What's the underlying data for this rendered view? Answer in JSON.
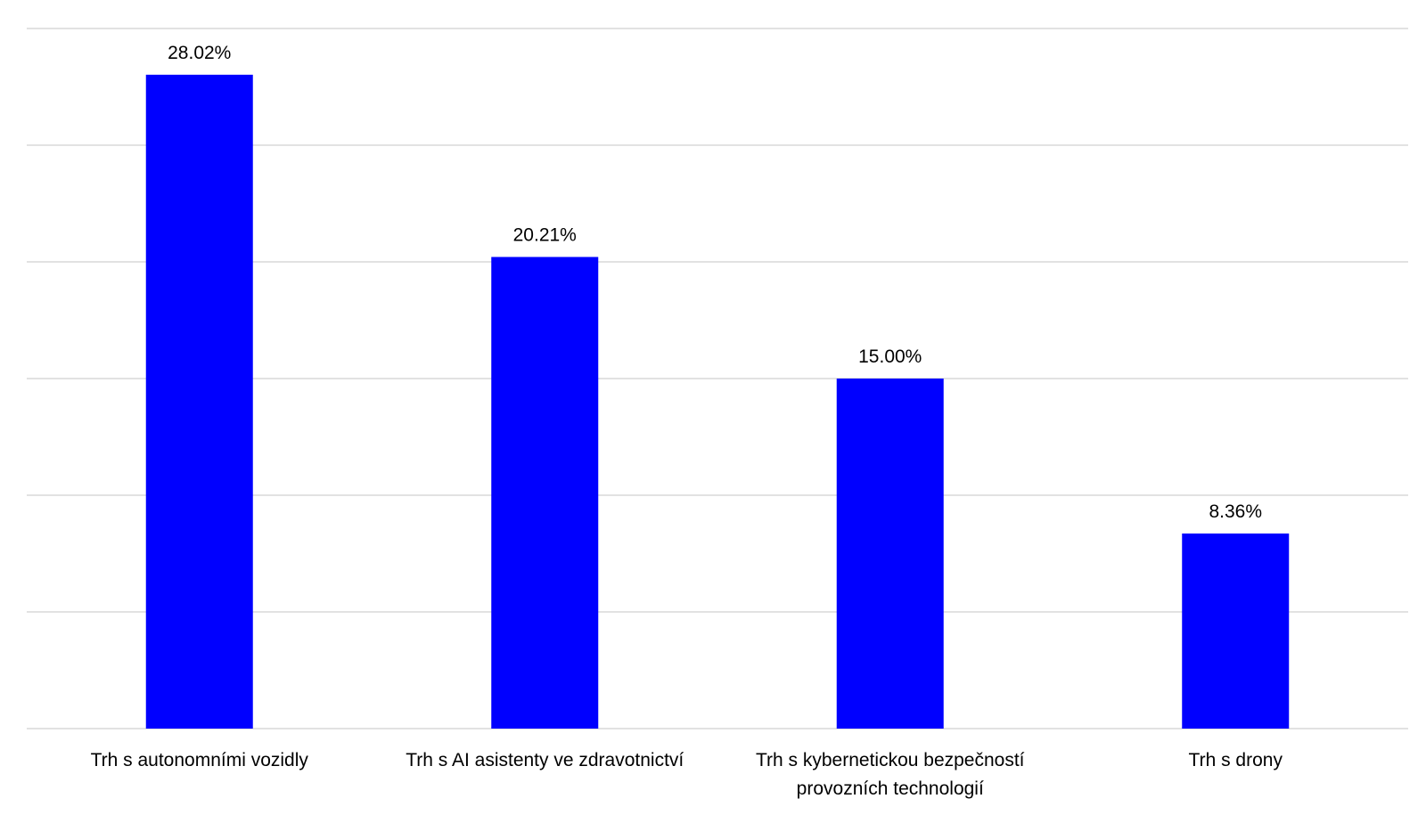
{
  "chart_data": {
    "type": "bar",
    "categories": [
      [
        "Trh s autonomními vozidly"
      ],
      [
        "Trh s AI asistenty ve zdravotnictví"
      ],
      [
        "Trh s kybernetickou bezpečností",
        "provozních technologií"
      ],
      [
        "Trh s drony"
      ]
    ],
    "values": [
      28.02,
      20.21,
      15.0,
      8.36
    ],
    "data_labels": [
      "28.02%",
      "20.21%",
      "15.00%",
      "8.36%"
    ],
    "ylim": [
      0,
      30
    ],
    "gridline_step": 5,
    "grid": true,
    "legend": "none",
    "bar_color": "#0000ff",
    "title": "",
    "xlabel": "",
    "ylabel": ""
  }
}
